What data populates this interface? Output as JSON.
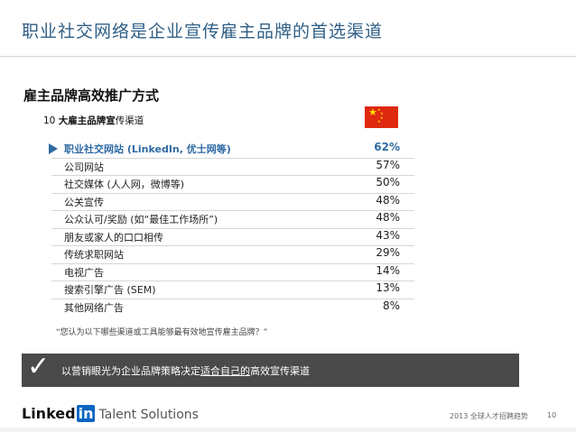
{
  "page": {
    "title": "职业社交网络是企业宣传雇主品牌的首选渠道",
    "subtitle": "雇主品牌高效推广方式",
    "table_title_prefix": "10 ",
    "table_title_bold": "大雇主品牌宣",
    "table_title_rest": "传渠道",
    "question": "“您认为以下哪些渠道或工具能够最有效地宣传雇主品牌？”",
    "banner_text_before": "以营销眼光为企业品牌策略决定",
    "banner_text_underlined": "适合自己的",
    "banner_text_after": "高效宣传渠道",
    "logo_text": "Linked",
    "logo_in": "in",
    "logo_suffix": "Talent Solutions",
    "footer_left": "2013 全球人才招聘趋势",
    "footer_right": "10",
    "check_glyph": "✓",
    "flag_big_star": "★",
    "flag_small_star": "★",
    "accent_color": "#2f6aa3",
    "flag": "china-flag"
  },
  "chart_data": {
    "type": "table",
    "categories": [
      "职业社交网站 (LinkedIn,  优士网等)",
      "公司网站",
      "社交媒体 (人人网，微博等)",
      "公关宣传",
      "公众认可/奖励 (如“最佳工作场所”)",
      "朋友或家人的口口相传",
      "传统求职网站",
      "电视广告",
      "搜索引擎广告 (SEM)",
      "其他网络广告"
    ],
    "labels": [
      "62%",
      "57%",
      "50%",
      "48%",
      "48%",
      "43%",
      "29%",
      "14%",
      "13%",
      "8%"
    ],
    "values": [
      62,
      57,
      50,
      48,
      48,
      43,
      29,
      14,
      13,
      8
    ],
    "highlight_index": 0
  }
}
